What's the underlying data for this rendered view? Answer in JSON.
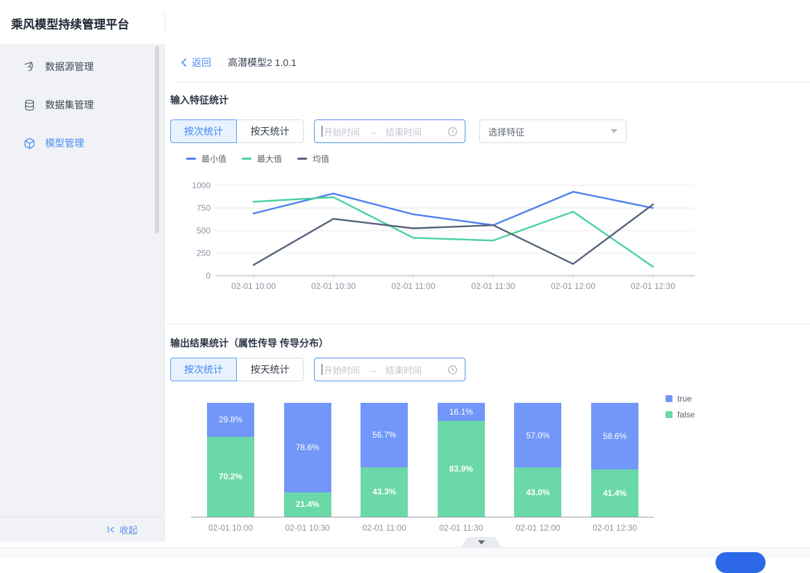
{
  "app": {
    "title": "乘风模型持续管理平台"
  },
  "sidebar": {
    "items": [
      {
        "label": "数据源管理",
        "icon": "data-source-icon",
        "active": false
      },
      {
        "label": "数据集管理",
        "icon": "dataset-icon",
        "active": false
      },
      {
        "label": "模型管理",
        "icon": "model-icon",
        "active": true
      }
    ],
    "collapse_label": "收起"
  },
  "breadcrumb": {
    "back_label": "返回",
    "title": "高潜模型2 1.0.1"
  },
  "sections": [
    {
      "title": "输入特征统计",
      "tabs": [
        {
          "label": "按次统计",
          "active": true
        },
        {
          "label": "按天统计",
          "active": false
        }
      ],
      "date_range": {
        "start_placeholder": "开始时间",
        "arrow": "→",
        "end_placeholder": "结束时间"
      },
      "feature_select": {
        "placeholder": "选择特征"
      }
    },
    {
      "title": "输出结果统计（属性传导 传导分布）",
      "tabs": [
        {
          "label": "按次统计",
          "active": true
        },
        {
          "label": "按天统计",
          "active": false
        }
      ],
      "date_range": {
        "start_placeholder": "开始时间",
        "arrow": "→",
        "end_placeholder": "结束时间"
      }
    }
  ],
  "chart_data": [
    {
      "type": "line",
      "x": [
        "02-01 10:00",
        "02-01 10:30",
        "02-01 11:00",
        "02-01 11:30",
        "02-01 12:00",
        "02-01 12:30"
      ],
      "series": [
        {
          "name": "最小值",
          "color": "#4c7ff0",
          "values": [
            690,
            910,
            680,
            560,
            930,
            750
          ]
        },
        {
          "name": "最大值",
          "color": "#49d1a0",
          "values": [
            820,
            870,
            420,
            390,
            710,
            100
          ]
        },
        {
          "name": "均值",
          "color": "#55617c",
          "values": [
            120,
            630,
            525,
            560,
            130,
            790
          ]
        }
      ],
      "ylim": [
        0,
        1000
      ],
      "yticks": [
        0,
        250,
        500,
        750,
        1000
      ],
      "grid": true,
      "legend_position": "top"
    },
    {
      "type": "bar",
      "stacked": true,
      "unit": "%",
      "categories": [
        "02-01 10:00",
        "02-01 10:30",
        "02-01 11:00",
        "02-01 11:30",
        "02-01 12:00",
        "02-01 12:30"
      ],
      "series": [
        {
          "name": "true",
          "color": "#7297f8",
          "values": [
            29.8,
            78.6,
            56.7,
            16.1,
            57.0,
            58.6
          ]
        },
        {
          "name": "false",
          "color": "#6ad8a7",
          "values": [
            70.2,
            21.4,
            43.3,
            83.9,
            43.0,
            41.4
          ]
        }
      ],
      "ylim": [
        0,
        100
      ],
      "legend_position": "right"
    }
  ],
  "colors": {
    "accent_blue": "#4a8cf5",
    "tab_active_bg": "#e7f2fe",
    "sidebar_bg": "#f0f2f5",
    "bottom_button": "#2c68e8"
  }
}
